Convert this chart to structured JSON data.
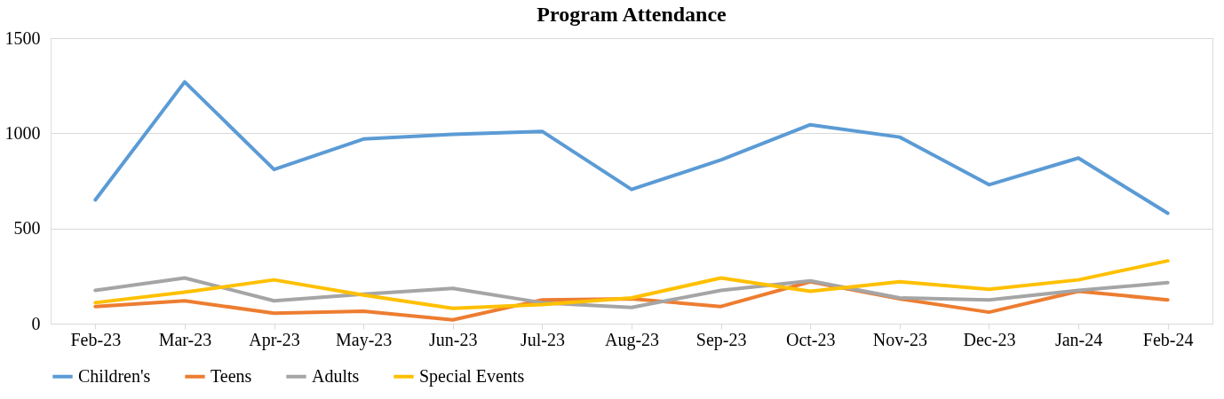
{
  "chart_data": {
    "type": "line",
    "title": "Program Attendance",
    "categories": [
      "Feb-23",
      "Mar-23",
      "Apr-23",
      "May-23",
      "Jun-23",
      "Jul-23",
      "Aug-23",
      "Sep-23",
      "Oct-23",
      "Nov-23",
      "Dec-23",
      "Jan-24",
      "Feb-24"
    ],
    "series": [
      {
        "name": "Children's",
        "color": "#5b9bd5",
        "values": [
          650,
          1270,
          810,
          970,
          995,
          1010,
          705,
          860,
          1045,
          980,
          730,
          870,
          580
        ]
      },
      {
        "name": "Teens",
        "color": "#ed7d31",
        "values": [
          90,
          120,
          55,
          65,
          20,
          125,
          130,
          90,
          220,
          130,
          60,
          170,
          125
        ]
      },
      {
        "name": "Adults",
        "color": "#a5a5a5",
        "values": [
          175,
          240,
          120,
          155,
          185,
          110,
          85,
          175,
          225,
          135,
          125,
          175,
          215
        ]
      },
      {
        "name": "Special Events",
        "color": "#ffc000",
        "values": [
          110,
          165,
          230,
          150,
          80,
          100,
          135,
          240,
          170,
          220,
          180,
          230,
          330
        ]
      }
    ],
    "ylim": [
      0,
      1500
    ],
    "yticks": [
      0,
      500,
      1000,
      1500
    ],
    "grid": "y",
    "legend": "bottom",
    "marker": "none",
    "line_style": "solid"
  }
}
